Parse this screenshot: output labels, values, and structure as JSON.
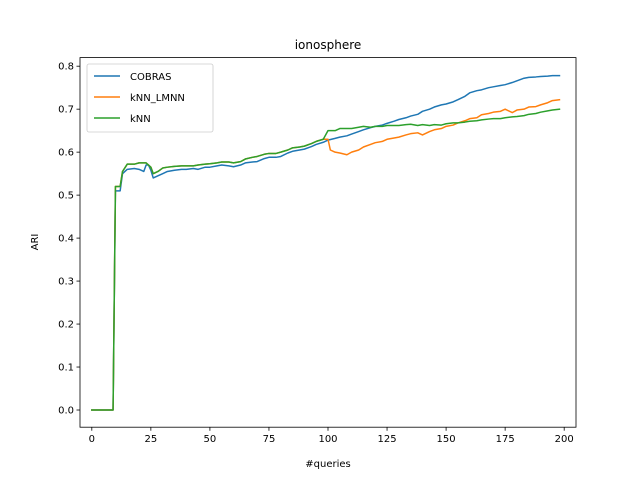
{
  "chart_data": {
    "type": "line",
    "title": "ionosphere",
    "xlabel": "#queries",
    "ylabel": "ARI",
    "xlim": [
      -5,
      205
    ],
    "ylim": [
      -0.04,
      0.82
    ],
    "xticks": [
      0,
      25,
      50,
      75,
      100,
      125,
      150,
      175,
      200
    ],
    "yticks": [
      0.0,
      0.1,
      0.2,
      0.3,
      0.4,
      0.5,
      0.6,
      0.7,
      0.8
    ],
    "xtick_labels": [
      "0",
      "25",
      "50",
      "75",
      "100",
      "125",
      "150",
      "175",
      "200"
    ],
    "ytick_labels": [
      "0.0",
      "0.1",
      "0.2",
      "0.3",
      "0.4",
      "0.5",
      "0.6",
      "0.7",
      "0.8"
    ],
    "grid": false,
    "legend_position": "top-left",
    "series": [
      {
        "name": "COBRAS",
        "color": "#1f77b4",
        "x": [
          0,
          9,
          10,
          12,
          13,
          15,
          18,
          20,
          22,
          23,
          24,
          25,
          26,
          28,
          30,
          32,
          35,
          38,
          40,
          43,
          45,
          48,
          50,
          53,
          55,
          58,
          60,
          63,
          65,
          68,
          70,
          73,
          75,
          78,
          80,
          83,
          85,
          88,
          90,
          93,
          95,
          98,
          100,
          103,
          105,
          108,
          110,
          113,
          115,
          118,
          120,
          123,
          125,
          128,
          130,
          133,
          135,
          138,
          140,
          143,
          145,
          148,
          150,
          153,
          155,
          158,
          160,
          163,
          165,
          168,
          170,
          173,
          175,
          178,
          180,
          183,
          185,
          188,
          190,
          193,
          195,
          198
        ],
        "y": [
          0.0,
          0.0,
          0.51,
          0.51,
          0.55,
          0.56,
          0.562,
          0.56,
          0.555,
          0.57,
          0.57,
          0.558,
          0.54,
          0.545,
          0.55,
          0.555,
          0.558,
          0.56,
          0.56,
          0.562,
          0.56,
          0.565,
          0.565,
          0.568,
          0.57,
          0.568,
          0.566,
          0.57,
          0.575,
          0.577,
          0.578,
          0.585,
          0.588,
          0.588,
          0.59,
          0.598,
          0.602,
          0.605,
          0.607,
          0.613,
          0.618,
          0.623,
          0.628,
          0.632,
          0.635,
          0.638,
          0.642,
          0.648,
          0.652,
          0.657,
          0.66,
          0.663,
          0.667,
          0.672,
          0.676,
          0.68,
          0.684,
          0.688,
          0.695,
          0.7,
          0.705,
          0.71,
          0.712,
          0.717,
          0.722,
          0.73,
          0.738,
          0.743,
          0.745,
          0.75,
          0.752,
          0.755,
          0.757,
          0.762,
          0.766,
          0.772,
          0.774,
          0.775,
          0.776,
          0.777,
          0.778,
          0.778
        ]
      },
      {
        "name": "kNN_LMNN",
        "color": "#ff7f0e",
        "x": [
          0,
          9,
          10,
          12,
          13,
          15,
          18,
          20,
          22,
          23,
          24,
          25,
          26,
          28,
          30,
          32,
          35,
          38,
          40,
          43,
          45,
          48,
          50,
          53,
          55,
          58,
          60,
          63,
          65,
          68,
          70,
          73,
          75,
          78,
          80,
          83,
          85,
          88,
          90,
          93,
          95,
          98,
          100,
          101,
          103,
          105,
          108,
          110,
          113,
          115,
          118,
          120,
          123,
          125,
          128,
          130,
          133,
          135,
          138,
          140,
          143,
          145,
          148,
          150,
          153,
          155,
          158,
          160,
          163,
          165,
          168,
          170,
          173,
          175,
          178,
          180,
          183,
          185,
          188,
          190,
          193,
          195,
          198
        ],
        "y": [
          0.0,
          0.0,
          0.52,
          0.52,
          0.555,
          0.572,
          0.572,
          0.575,
          0.575,
          0.575,
          0.57,
          0.565,
          0.55,
          0.555,
          0.563,
          0.565,
          0.567,
          0.568,
          0.568,
          0.568,
          0.57,
          0.572,
          0.573,
          0.575,
          0.577,
          0.577,
          0.575,
          0.578,
          0.584,
          0.588,
          0.59,
          0.595,
          0.597,
          0.597,
          0.6,
          0.605,
          0.61,
          0.612,
          0.614,
          0.62,
          0.625,
          0.63,
          0.63,
          0.605,
          0.6,
          0.598,
          0.594,
          0.6,
          0.605,
          0.612,
          0.618,
          0.622,
          0.625,
          0.63,
          0.633,
          0.635,
          0.64,
          0.643,
          0.645,
          0.64,
          0.648,
          0.652,
          0.655,
          0.66,
          0.663,
          0.668,
          0.673,
          0.678,
          0.68,
          0.687,
          0.69,
          0.693,
          0.695,
          0.7,
          0.692,
          0.698,
          0.7,
          0.705,
          0.706,
          0.71,
          0.715,
          0.72,
          0.722
        ]
      },
      {
        "name": "kNN",
        "color": "#2ca02c",
        "x": [
          0,
          9,
          10,
          12,
          13,
          15,
          18,
          20,
          22,
          23,
          24,
          25,
          26,
          28,
          30,
          32,
          35,
          38,
          40,
          43,
          45,
          48,
          50,
          53,
          55,
          58,
          60,
          63,
          65,
          68,
          70,
          73,
          75,
          78,
          80,
          83,
          85,
          88,
          90,
          93,
          95,
          98,
          100,
          103,
          105,
          108,
          110,
          113,
          115,
          118,
          120,
          123,
          125,
          128,
          130,
          133,
          135,
          138,
          140,
          143,
          145,
          148,
          150,
          153,
          155,
          158,
          160,
          163,
          165,
          168,
          170,
          173,
          175,
          178,
          180,
          183,
          185,
          188,
          190,
          193,
          195,
          198
        ],
        "y": [
          0.0,
          0.0,
          0.52,
          0.52,
          0.555,
          0.572,
          0.572,
          0.575,
          0.575,
          0.575,
          0.57,
          0.565,
          0.55,
          0.555,
          0.563,
          0.565,
          0.567,
          0.568,
          0.568,
          0.568,
          0.57,
          0.572,
          0.573,
          0.575,
          0.577,
          0.577,
          0.575,
          0.578,
          0.584,
          0.588,
          0.59,
          0.595,
          0.597,
          0.597,
          0.6,
          0.605,
          0.61,
          0.612,
          0.614,
          0.62,
          0.625,
          0.63,
          0.65,
          0.65,
          0.655,
          0.655,
          0.655,
          0.658,
          0.66,
          0.658,
          0.66,
          0.66,
          0.662,
          0.662,
          0.662,
          0.664,
          0.665,
          0.662,
          0.664,
          0.662,
          0.664,
          0.663,
          0.666,
          0.668,
          0.668,
          0.67,
          0.672,
          0.673,
          0.675,
          0.677,
          0.678,
          0.678,
          0.68,
          0.682,
          0.683,
          0.685,
          0.688,
          0.69,
          0.693,
          0.696,
          0.698,
          0.7
        ]
      }
    ]
  }
}
